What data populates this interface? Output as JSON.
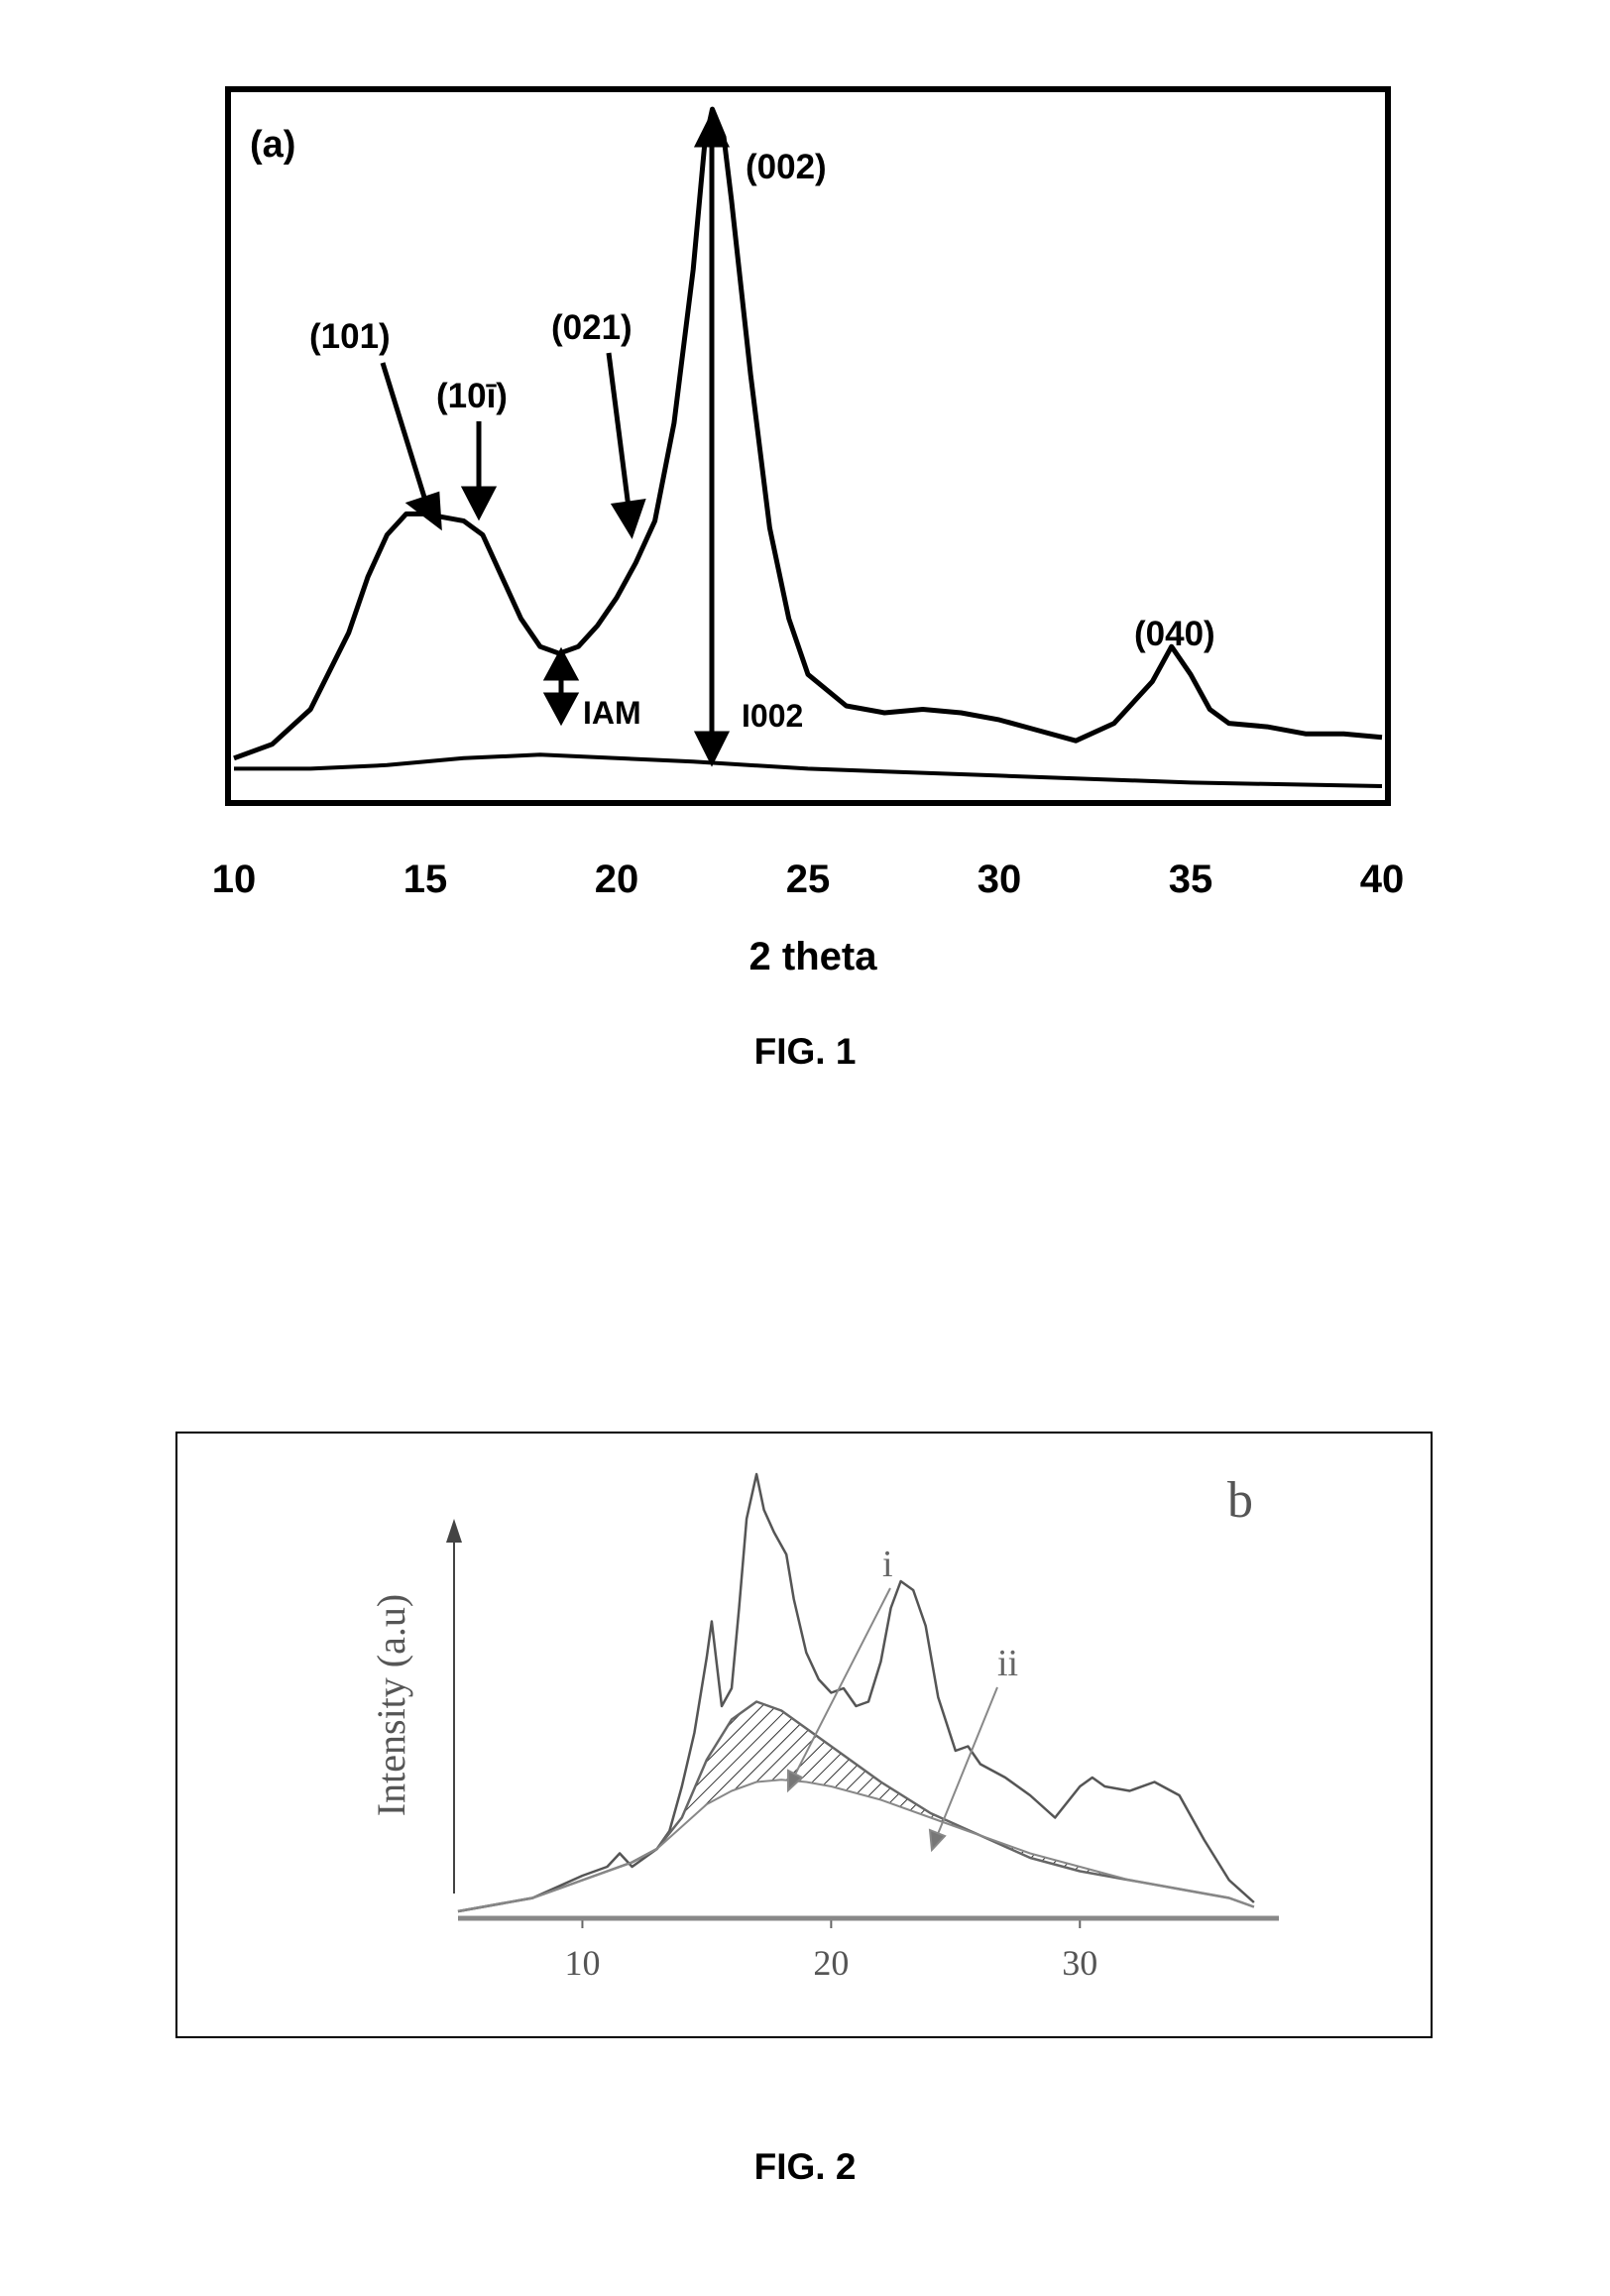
{
  "chart_data": [
    {
      "type": "line",
      "panel_label": "(a)",
      "xlabel": "2 theta",
      "ylabel": "",
      "xlim": [
        10,
        40
      ],
      "ylim": [
        0,
        100
      ],
      "x_ticks": [
        10,
        15,
        20,
        25,
        30,
        35,
        40
      ],
      "y_ticks": [],
      "grid": false,
      "series": [
        {
          "x": [
            10,
            11,
            12,
            13,
            13.5,
            14,
            14.5,
            15,
            15.5,
            16,
            16.5,
            17,
            17.5,
            18,
            18.5,
            19,
            19.5,
            20,
            20.5,
            21,
            21.5,
            22,
            22.3,
            22.5,
            22.8,
            23,
            23.5,
            24,
            24.5,
            25,
            26,
            27,
            28,
            29,
            30,
            31,
            32,
            33,
            33.5,
            34,
            34.5,
            35,
            35.5,
            36,
            37,
            38,
            39,
            40
          ],
          "y": [
            5,
            7,
            12,
            23,
            31,
            37,
            40,
            40,
            39.5,
            39,
            37,
            31,
            25,
            21,
            20,
            21,
            24,
            28,
            33,
            39,
            53,
            75,
            93,
            98,
            94,
            85,
            60,
            38,
            25,
            17,
            12.5,
            11.5,
            12,
            11.5,
            10.5,
            9,
            7.5,
            10,
            13,
            16,
            21,
            17,
            12,
            10,
            9.5,
            8.5,
            8.5,
            8
          ]
        },
        {
          "x": [
            10,
            12,
            14,
            16,
            18,
            20,
            22,
            25,
            30,
            35,
            40
          ],
          "y": [
            3.5,
            3.5,
            4,
            5,
            5.5,
            5,
            4.5,
            3.5,
            2.5,
            1.5,
            1
          ]
        }
      ],
      "annotations": [
        "(101)",
        "(10ī)",
        "(021)",
        "(002)",
        "(040)",
        "IAM",
        "I002"
      ]
    },
    {
      "type": "area",
      "panel_label": "b",
      "xlabel": "",
      "ylabel": "Intensity (a.u)",
      "xlim": [
        5,
        38
      ],
      "ylim": [
        0,
        100
      ],
      "x_ticks": [
        10,
        20,
        30
      ],
      "y_ticks": [],
      "grid": false,
      "series": [
        {
          "x": [
            5,
            8,
            10,
            11,
            11.5,
            12,
            12.5,
            13,
            13.5,
            14,
            14.5,
            15,
            15.2,
            15.6,
            16,
            16.3,
            16.6,
            17,
            17.3,
            17.7,
            18.2,
            18.5,
            19,
            19.5,
            20,
            20.5,
            21,
            21.5,
            22,
            22.4,
            22.8,
            23.3,
            23.8,
            24.3,
            25,
            25.5,
            26,
            27,
            28,
            29,
            30,
            30.5,
            31,
            32,
            33,
            34,
            35,
            36,
            37
          ],
          "y": [
            0,
            3,
            8,
            10,
            13,
            10,
            12,
            14,
            18,
            28,
            40,
            57,
            65,
            46,
            50,
            68,
            88,
            98,
            90,
            85,
            80,
            70,
            58,
            52,
            49,
            50,
            46,
            47,
            56,
            68,
            74,
            72,
            64,
            48,
            36,
            37,
            33,
            30,
            26,
            21,
            28,
            30,
            28,
            27,
            29,
            26,
            16,
            7,
            2
          ]
        },
        {
          "x": [
            5,
            8,
            10,
            12,
            13,
            14,
            15,
            16,
            17,
            18,
            19,
            20,
            22,
            24,
            26,
            28,
            30,
            32,
            34,
            36,
            37
          ],
          "y": [
            0,
            3,
            7,
            11,
            14,
            21,
            34,
            43,
            47,
            45,
            41,
            37,
            29,
            22,
            17,
            12,
            9,
            7,
            5,
            3,
            1
          ]
        },
        {
          "x": [
            5,
            8,
            10,
            12,
            13,
            14,
            15,
            16,
            17,
            18,
            19,
            20,
            22,
            24,
            26,
            28,
            30,
            32,
            34,
            36,
            37
          ],
          "y": [
            0,
            3,
            7,
            11,
            14,
            19,
            24,
            27,
            29,
            29.5,
            29,
            28,
            25,
            21,
            17,
            13,
            10,
            7,
            5,
            3,
            1
          ]
        }
      ],
      "annotations": [
        "i",
        "ii"
      ]
    }
  ],
  "figures": [
    {
      "caption": "FIG. 1"
    },
    {
      "caption": "FIG. 2"
    }
  ]
}
